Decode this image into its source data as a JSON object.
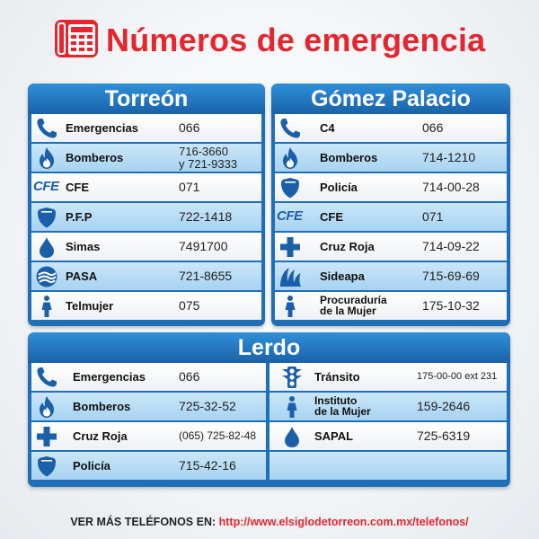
{
  "title": "Números de emergencia",
  "colors": {
    "accent": "#e5262f",
    "panel": "#1f6fb8",
    "row_blue": "#a7d3f1",
    "row_white": "#ffffff"
  },
  "torreon": {
    "title": "Torreón",
    "rows": [
      {
        "icon": "phone-icon",
        "name": "Emergencias",
        "number": "066"
      },
      {
        "icon": "fire-icon",
        "name": "Bomberos",
        "number_line1": "716-3660",
        "number_line2": "y 721-9333"
      },
      {
        "icon": "cfe-logo",
        "icon_text": "CFE",
        "name": "CFE",
        "number": "071"
      },
      {
        "icon": "police-shield-icon",
        "name": "P.F.P",
        "number": "722-1418"
      },
      {
        "icon": "water-drop-icon",
        "name": "Simas",
        "number": "7491700"
      },
      {
        "icon": "pasa-logo-icon",
        "name": "PASA",
        "number": "721-8655"
      },
      {
        "icon": "woman-icon",
        "name": "Telmujer",
        "number": "075"
      }
    ]
  },
  "gomez": {
    "title": "Gómez Palacio",
    "rows": [
      {
        "icon": "phone-icon",
        "name": "C4",
        "number": "066"
      },
      {
        "icon": "fire-icon",
        "name": "Bomberos",
        "number": "714-1210"
      },
      {
        "icon": "police-shield-icon",
        "name": "Policía",
        "number": "714-00-28"
      },
      {
        "icon": "cfe-logo",
        "icon_text": "CFE",
        "name": "CFE",
        "number": "071"
      },
      {
        "icon": "red-cross-icon",
        "name": "Cruz Roja",
        "number": "714-09-22"
      },
      {
        "icon": "sideapa-logo-icon",
        "name": "Sideapa",
        "number": "715-69-69"
      },
      {
        "icon": "woman-icon",
        "name_line1": "Procuraduría",
        "name_line2": "de la Mujer",
        "number": "175-10-32"
      }
    ]
  },
  "lerdo": {
    "title": "Lerdo",
    "left_rows": [
      {
        "icon": "phone-icon",
        "name": "Emergencias",
        "number": "066"
      },
      {
        "icon": "fire-icon",
        "name": "Bomberos",
        "number": "725-32-52"
      },
      {
        "icon": "red-cross-icon",
        "name": "Cruz Roja",
        "number": "(065) 725-82-48"
      },
      {
        "icon": "police-shield-icon",
        "name": "Policía",
        "number": "715-42-16"
      }
    ],
    "right_rows": [
      {
        "icon": "traffic-light-icon",
        "name": "Tránsito",
        "number": "175-00-00 ext 231"
      },
      {
        "icon": "woman-icon",
        "name_line1": "Instituto",
        "name_line2": "de la Mujer",
        "number": "159-2646"
      },
      {
        "icon": "water-drop-icon",
        "name": "SAPAL",
        "number": "725-6319"
      }
    ]
  },
  "footer": {
    "label": "VER MÁS TELÉFONOS EN:",
    "url": "http://www.elsiglodetorreon.com.mx/telefonos/"
  }
}
